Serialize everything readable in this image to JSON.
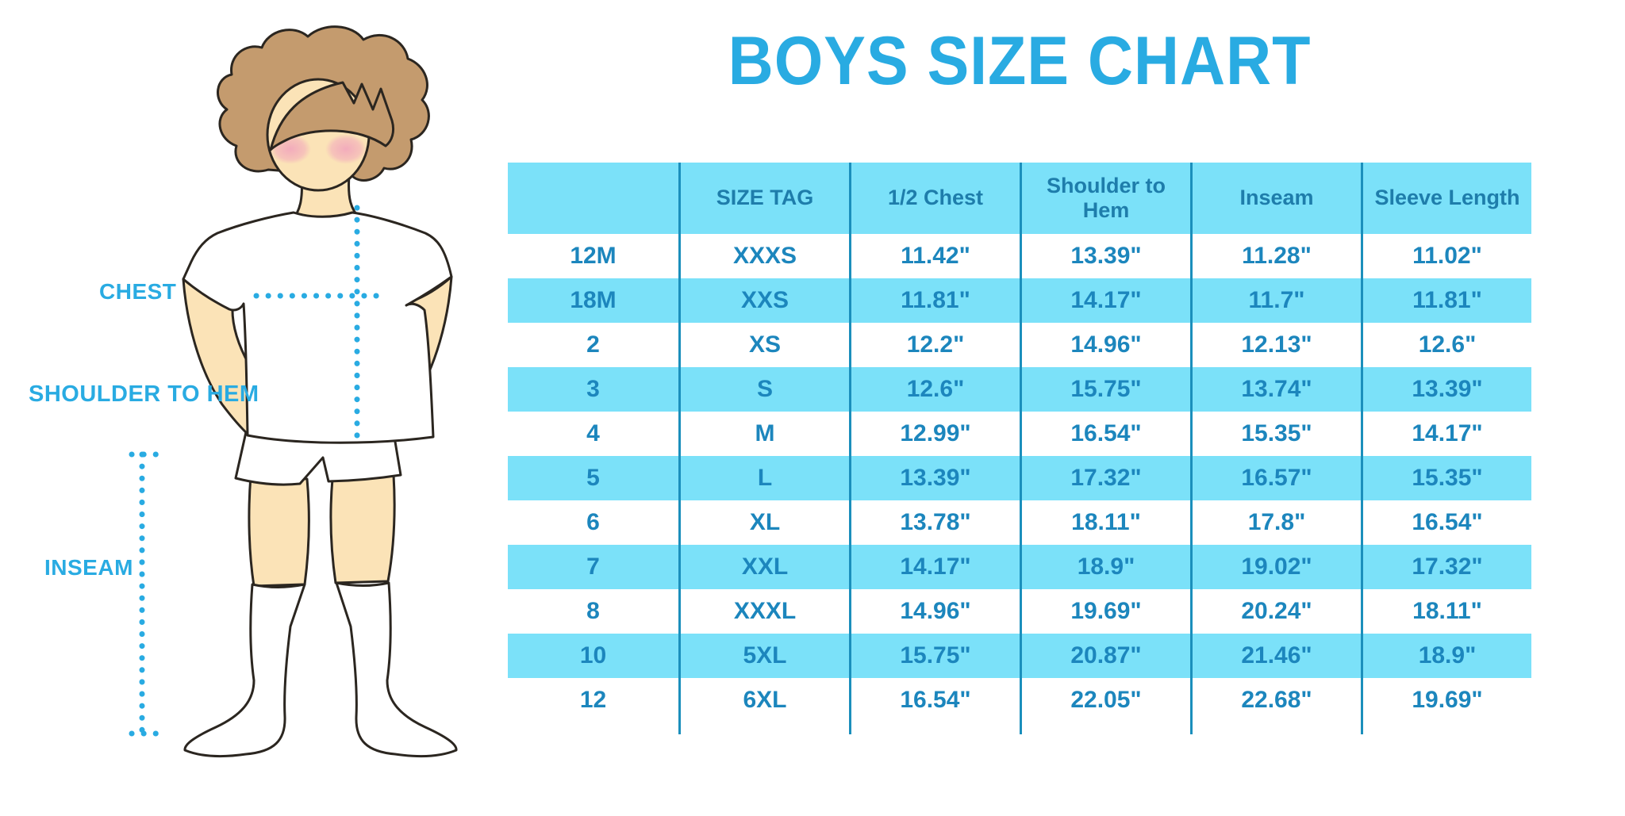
{
  "chart_data": {
    "type": "table",
    "title": "BOYS SIZE CHART",
    "columns": [
      "",
      "SIZE TAG",
      "1/2 Chest",
      "Shoulder to Hem",
      "Inseam",
      "Sleeve Length"
    ],
    "rows": [
      [
        "12M",
        "XXXS",
        "11.42\"",
        "13.39\"",
        "11.28\"",
        "11.02\""
      ],
      [
        "18M",
        "XXS",
        "11.81\"",
        "14.17\"",
        "11.7\"",
        "11.81\""
      ],
      [
        "2",
        "XS",
        "12.2\"",
        "14.96\"",
        "12.13\"",
        "12.6\""
      ],
      [
        "3",
        "S",
        "12.6\"",
        "15.75\"",
        "13.74\"",
        "13.39\""
      ],
      [
        "4",
        "M",
        "12.99\"",
        "16.54\"",
        "15.35\"",
        "14.17\""
      ],
      [
        "5",
        "L",
        "13.39\"",
        "17.32\"",
        "16.57\"",
        "15.35\""
      ],
      [
        "6",
        "XL",
        "13.78\"",
        "18.11\"",
        "17.8\"",
        "16.54\""
      ],
      [
        "7",
        "XXL",
        "14.17\"",
        "18.9\"",
        "19.02\"",
        "17.32\""
      ],
      [
        "8",
        "XXXL",
        "14.96\"",
        "19.69\"",
        "20.24\"",
        "18.11\""
      ],
      [
        "10",
        "5XL",
        "15.75\"",
        "20.87\"",
        "21.46\"",
        "18.9\""
      ],
      [
        "12",
        "6XL",
        "16.54\"",
        "22.05\"",
        "22.68\"",
        "19.69\""
      ]
    ],
    "layout": {
      "stripe_pattern": "rows 18M, 3, 5, 7, 10 highlighted cyan; others white",
      "gridlines": "vertical dividers only"
    }
  },
  "figure": {
    "labels": {
      "chest": "CHEST",
      "shoulder_to_hem": "SHOULDER TO HEM",
      "inseam": "INSEAM"
    }
  },
  "colors": {
    "accent_blue": "#29ABE2",
    "stripe_cyan": "#7BE1F9",
    "divider_teal": "#1B8FBC",
    "header_text": "#1E7DAB",
    "cell_text": "#1C86BD",
    "hair_brown": "#C49B6E",
    "skin": "#FBE3B7",
    "blush_pink": "#F2A9BC",
    "outline": "#2B2620"
  }
}
